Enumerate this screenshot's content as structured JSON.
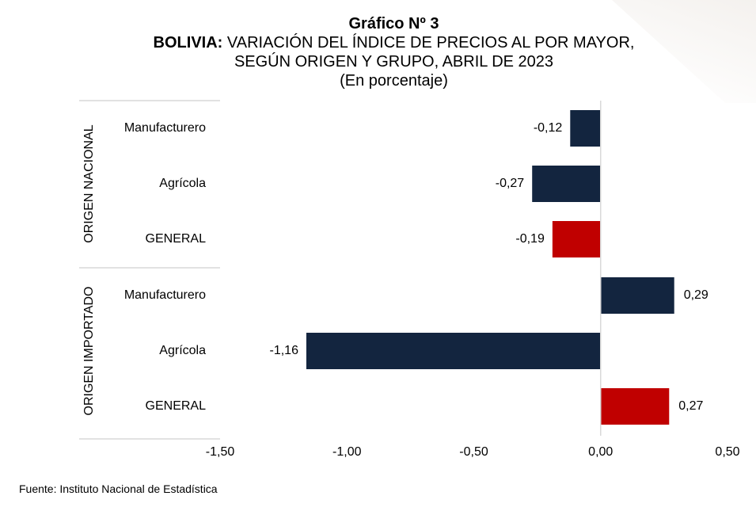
{
  "chart_data": {
    "type": "bar",
    "orientation": "horizontal",
    "title": "Gráfico Nº 3",
    "subtitle_bold": "BOLIVIA:",
    "subtitle_rest": "VARIACIÓN DEL ÍNDICE DE PRECIOS AL POR MAYOR,",
    "subtitle_line2": "SEGÚN ORIGEN Y GRUPO, ABRIL DE 2023",
    "unit_note": "(En porcentaje)",
    "groups": [
      {
        "name": "ORIGEN NACIONAL",
        "categories": [
          "Manufacturero",
          "Agrícola",
          "GENERAL"
        ],
        "values": [
          -0.12,
          -0.27,
          -0.19
        ],
        "value_labels": [
          "-0,12",
          "-0,27",
          "-0,19"
        ]
      },
      {
        "name": "ORIGEN IMPORTADO",
        "categories": [
          "Manufacturero",
          "Agrícola",
          "GENERAL"
        ],
        "values": [
          0.29,
          -1.16,
          0.27
        ],
        "value_labels": [
          "0,29",
          "-1,16",
          "0,27"
        ]
      }
    ],
    "xlim": [
      -1.5,
      0.5
    ],
    "xticks": [
      -1.5,
      -1.0,
      -0.5,
      0.0,
      0.5
    ],
    "xtick_labels": [
      "-1,50",
      "-1,00",
      "-0,50",
      "0,00",
      "0,50"
    ],
    "grid": false,
    "legend": "none",
    "colors": {
      "bar": "#13253f",
      "general": "#c00000",
      "axis": "#d9d9d9"
    }
  },
  "source": "Fuente: Instituto Nacional de Estadística"
}
